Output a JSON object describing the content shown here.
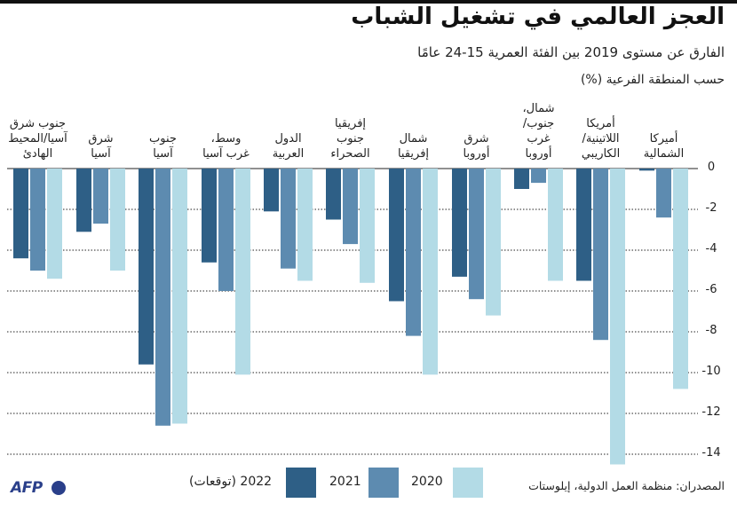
{
  "title": "العجز العالمي في تشغيل الشباب",
  "subtitle": "الفارق عن مستوى 2019 بين الفئة العمرية 15-24 عامًا",
  "unit_note": "حسب المنطقة الفرعية (%)",
  "source": "المصدران: منظمة العمل الدولية، إيلوستات",
  "logo": "AFP",
  "colors": {
    "s2022": "#2e5f86",
    "s2021": "#5d8bb0",
    "s2020": "#b3dbe6",
    "grid": "#222222"
  },
  "chart_data": {
    "type": "bar",
    "title": "العجز العالمي في تشغيل الشباب",
    "ylabel": "حسب المنطقة الفرعية (%)",
    "ylim": [
      -15,
      0
    ],
    "yticks": [
      0,
      -2,
      -4,
      -6,
      -8,
      -10,
      -12,
      -14
    ],
    "categories": [
      [
        "جنوب شرق",
        "آسيا/المحيط",
        "الهادئ"
      ],
      [
        "شرق",
        "آسيا"
      ],
      [
        "جنوب",
        "آسيا"
      ],
      [
        "وسط،",
        "غرب آسيا"
      ],
      [
        "الدول",
        "العربية"
      ],
      [
        "إفريقيا",
        "جنوب",
        "الصحراء"
      ],
      [
        "شمال",
        "إفريقيا"
      ],
      [
        "شرق",
        "أوروبا"
      ],
      [
        "شمال،",
        "جنوب/",
        "غرب",
        "أوروبا"
      ],
      [
        "أمريكا",
        "اللاتينية/",
        "الكاريبي"
      ],
      [
        "أميركا",
        "الشمالية"
      ]
    ],
    "series": [
      {
        "name": "2022 (توقعات)",
        "key": "s2022",
        "values": [
          -4.4,
          -3.1,
          -9.6,
          -4.6,
          -2.1,
          -2.5,
          -6.5,
          -5.3,
          -1.0,
          -5.5,
          -0.1
        ]
      },
      {
        "name": "2021",
        "key": "s2021",
        "values": [
          -5.0,
          -2.7,
          -12.6,
          -6.0,
          -4.9,
          -3.7,
          -8.2,
          -6.4,
          -0.7,
          -8.4,
          -2.4
        ]
      },
      {
        "name": "2020",
        "key": "s2020",
        "values": [
          -5.4,
          -5.0,
          -12.5,
          -10.1,
          -5.5,
          -5.6,
          -10.1,
          -7.2,
          -5.5,
          -14.5,
          -10.8
        ]
      }
    ]
  },
  "legend": [
    {
      "key": "s2022",
      "label": "2022 (توقعات)"
    },
    {
      "key": "s2021",
      "label": "2021"
    },
    {
      "key": "s2020",
      "label": "2020"
    }
  ]
}
